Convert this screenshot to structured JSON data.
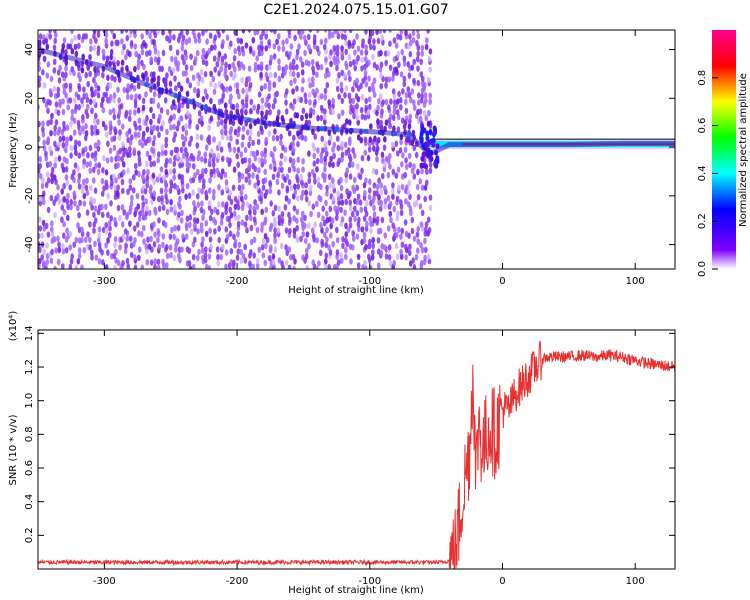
{
  "title": "C2E1.2024.075.15.01.G07",
  "chart_data": [
    {
      "type": "heatmap",
      "xlabel": "Height of straight line (km)",
      "ylabel": "Frequency (Hz)",
      "xlim": [
        -350,
        130
      ],
      "ylim": [
        -50,
        48
      ],
      "xticks": [
        "-300",
        "-200",
        "-100",
        "0",
        "100"
      ],
      "yticks": [
        "-40",
        "-20",
        "0",
        "20",
        "40"
      ],
      "colorbar": {
        "label": "Normalized spectral amplitude",
        "range": [
          0.0,
          1.0
        ],
        "ticks": [
          "0.0",
          "0.2",
          "0.4",
          "0.6",
          "0.8"
        ],
        "colors": [
          "#ffffff",
          "#8000ff",
          "#0000ff",
          "#00ffff",
          "#00ff00",
          "#ffff00",
          "#ff0000",
          "#ff0090"
        ]
      },
      "data_extent_x": [
        -350,
        -55
      ],
      "signal_ridge": {
        "x": [
          -350,
          -300,
          -270,
          -250,
          -210,
          -180,
          -150,
          -120,
          -90,
          -70,
          -55,
          -40,
          -20,
          0,
          50,
          90,
          130
        ],
        "y": [
          40,
          33,
          26,
          22,
          13,
          10,
          8,
          7,
          6,
          5,
          -3,
          1,
          1,
          1,
          1,
          1.5,
          1.5
        ]
      }
    },
    {
      "type": "line",
      "xlabel": "Height of straight line (km)",
      "ylabel": "SNR (10 * v/v)",
      "yscale_label": "(x10⁴)",
      "xlim": [
        -350,
        130
      ],
      "ylim": [
        0,
        1.42
      ],
      "xticks": [
        "-300",
        "-200",
        "-100",
        "0",
        "100"
      ],
      "yticks": [
        "0.2",
        "0.4",
        "0.6",
        "0.8",
        "1.0",
        "1.2",
        "1.4"
      ],
      "line_color": "#e83030",
      "x": [
        -350,
        -300,
        -250,
        -200,
        -150,
        -100,
        -60,
        -45,
        -40,
        -35,
        -30,
        -25,
        -22,
        -20,
        -18,
        -15,
        -10,
        -5,
        0,
        5,
        10,
        15,
        20,
        25,
        30,
        35,
        40,
        50,
        60,
        70,
        80,
        90,
        100,
        110,
        120,
        130
      ],
      "y": [
        0.04,
        0.04,
        0.04,
        0.04,
        0.04,
        0.04,
        0.04,
        0.04,
        0.05,
        0.12,
        0.45,
        0.7,
        1.2,
        0.5,
        0.9,
        0.7,
        0.85,
        0.8,
        0.95,
        0.95,
        1.05,
        1.1,
        1.15,
        1.2,
        1.25,
        1.26,
        1.26,
        1.26,
        1.27,
        1.26,
        1.27,
        1.26,
        1.24,
        1.22,
        1.21,
        1.2
      ]
    }
  ]
}
